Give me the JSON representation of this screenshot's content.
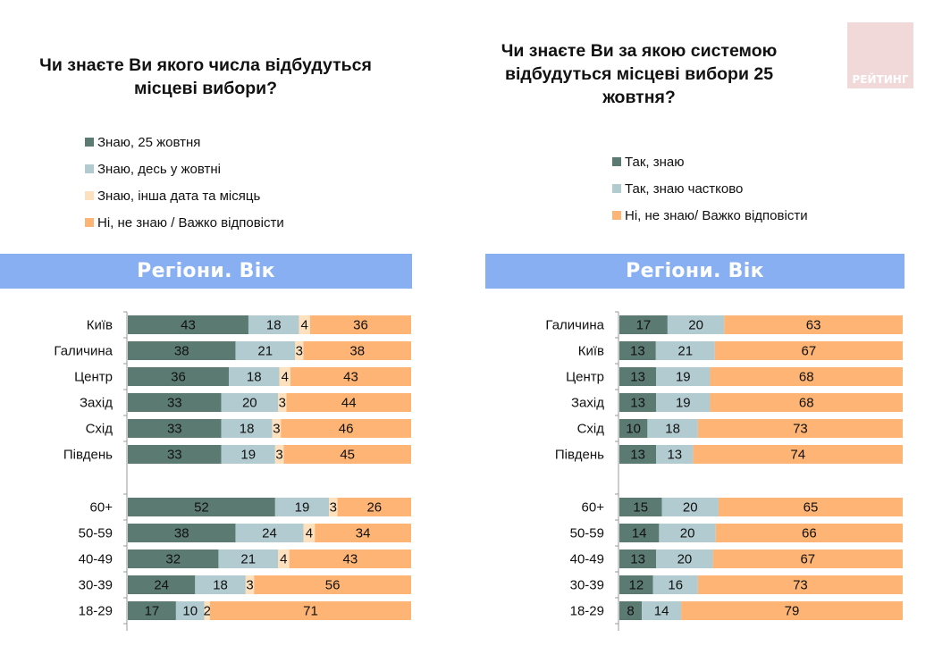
{
  "logo": {
    "text": "РЕЙТИНГ"
  },
  "colors": {
    "dark_green": "#5b7b72",
    "light_blue": "#b2cbd0",
    "pale_peach": "#fde0bd",
    "orange": "#fdb474",
    "band": "#88aff2"
  },
  "chart_data": [
    {
      "type": "bar",
      "orientation": "horizontal-stacked-100",
      "title": "Чи знаєте Ви якого числа відбудуться місцеві вибори?",
      "band_label": "Регіони. Вік",
      "legend": [
        {
          "name": "Знаю, 25 жовтня",
          "color": "#5b7b72"
        },
        {
          "name": "Знаю, десь у жовтні",
          "color": "#b2cbd0"
        },
        {
          "name": "Знаю, інша дата та місяць",
          "color": "#fde0bd"
        },
        {
          "name": "Ні, не знаю / Важко відповісти",
          "color": "#fdb474"
        }
      ],
      "groups": [
        {
          "categories": [
            "Київ",
            "Галичина",
            "Центр",
            "Захід",
            "Схід",
            "Південь"
          ],
          "values": [
            [
              43,
              18,
              4,
              36
            ],
            [
              38,
              21,
              3,
              38
            ],
            [
              36,
              18,
              4,
              43
            ],
            [
              33,
              20,
              3,
              44
            ],
            [
              33,
              18,
              3,
              46
            ],
            [
              33,
              19,
              3,
              45
            ]
          ]
        },
        {
          "categories": [
            "60+",
            "50-59",
            "40-49",
            "30-39",
            "18-29"
          ],
          "values": [
            [
              52,
              19,
              3,
              26
            ],
            [
              38,
              24,
              4,
              34
            ],
            [
              32,
              21,
              4,
              43
            ],
            [
              24,
              18,
              3,
              56
            ],
            [
              17,
              10,
              2,
              71
            ]
          ]
        }
      ],
      "xlabel": "",
      "ylabel": "",
      "xlim": [
        0,
        100
      ]
    },
    {
      "type": "bar",
      "orientation": "horizontal-stacked-100",
      "title": "Чи знаєте Ви за якою системою відбудуться місцеві вибори 25 жовтня?",
      "band_label": "Регіони. Вік",
      "legend": [
        {
          "name": "Так, знаю",
          "color": "#5b7b72"
        },
        {
          "name": "Так, знаю частково",
          "color": "#b2cbd0"
        },
        {
          "name": "Ні, не знаю/ Важко відповісти",
          "color": "#fdb474"
        }
      ],
      "groups": [
        {
          "categories": [
            "Галичина",
            "Київ",
            "Центр",
            "Захід",
            "Схід",
            "Південь"
          ],
          "values": [
            [
              17,
              20,
              63
            ],
            [
              13,
              21,
              67
            ],
            [
              13,
              19,
              68
            ],
            [
              13,
              19,
              68
            ],
            [
              10,
              18,
              73
            ],
            [
              13,
              13,
              74
            ]
          ]
        },
        {
          "categories": [
            "60+",
            "50-59",
            "40-49",
            "30-39",
            "18-29"
          ],
          "values": [
            [
              15,
              20,
              65
            ],
            [
              14,
              20,
              66
            ],
            [
              13,
              20,
              67
            ],
            [
              12,
              16,
              73
            ],
            [
              8,
              14,
              79
            ]
          ]
        }
      ],
      "xlabel": "",
      "ylabel": "",
      "xlim": [
        0,
        100
      ]
    }
  ]
}
